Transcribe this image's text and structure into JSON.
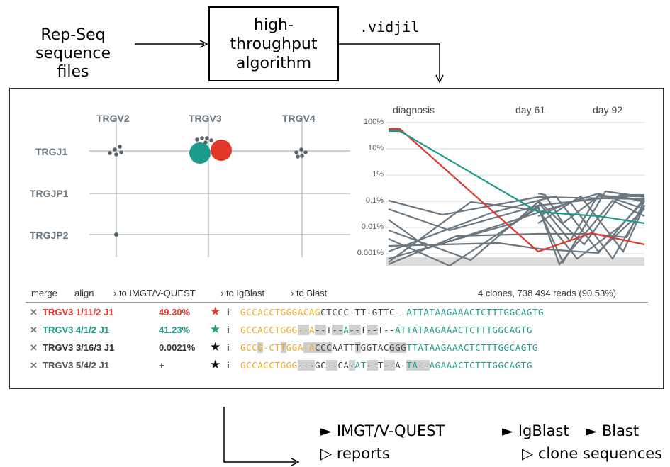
{
  "diagram": {
    "input_label_line1": "Rep-Seq",
    "input_label_line2": "sequence files",
    "algorithm_line1": "high-",
    "algorithm_line2": "throughput",
    "algorithm_line3": "algorithm",
    "output_format": ".vidjil"
  },
  "grid": {
    "v_genes": [
      "TRGV2",
      "TRGV3",
      "TRGV4"
    ],
    "j_genes": [
      "TRGJ1",
      "TRGJP1",
      "TRGJP2"
    ]
  },
  "timeline": {
    "sample_labels": [
      "diagnosis",
      "day 61",
      "day 92"
    ],
    "y_ticks": [
      "100%",
      "10%",
      "1%",
      "0.1%",
      "0.01%",
      "0.001%"
    ]
  },
  "toolbar": {
    "merge": "merge",
    "align": "align",
    "imgt": "› to IMGT/V-QUEST",
    "igblast": "› to IgBlast",
    "blast": "› to Blast",
    "summary": "4 clones, 738 494 reads (90.53%)"
  },
  "clones": [
    {
      "name": "TRGV3 1/11/2 J1",
      "percent": "49.30%",
      "color": "#e0392b",
      "star": "★",
      "info": "i",
      "seq": "GCCACCTGGGACAGCTCCC-TT-GTTC--ATTATAAGAAACTCTTTGGCAGTG"
    },
    {
      "name": "TRGV3 4/1/2 J1",
      "percent": "41.23%",
      "color": "#1d9a8e",
      "star": "★",
      "info": "i",
      "seq": "GCCACCTGGG--A--T--A--T--T--ATTATAAGAAACTCTTTGGCAGTG"
    },
    {
      "name": "TRGV3 3/16/3 J1",
      "percent": "0.0021%",
      "color": "#333333",
      "star": "★",
      "info": "i",
      "seq": "GCCG-CTTGGA-ACCCAATTTGGTACGGGTTATAAGAAACTCTTTGGCAGTG"
    },
    {
      "name": "TRGV3 5/4/2 J1",
      "percent": "+",
      "color": "#555555",
      "star": "★",
      "info": "i",
      "seq": "GCCACCTGGG---GC--CA-AT--T--A-TA--AGAAACTCTTTGGCAGTG"
    }
  ],
  "outputs": {
    "imgt": "► IMGT/V-QUEST",
    "igblast": "► IgBlast",
    "blast": "► Blast",
    "reports": "▷ reports",
    "clone_sequences": "▷ clone sequences"
  },
  "colors": {
    "red": "#e0392b",
    "teal": "#1d9a8e",
    "grey": "#6b7780",
    "orange": "#f0a81e"
  }
}
